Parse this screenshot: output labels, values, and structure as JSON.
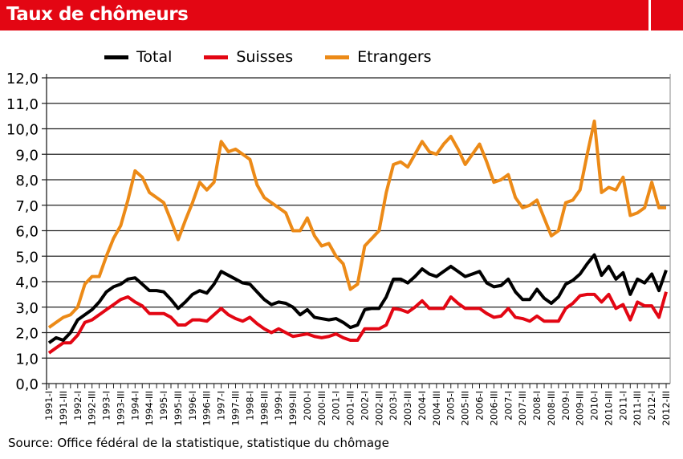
{
  "title": "Taux de chômeurs",
  "source": "Source: Office fédéral de la statistique, statistique du chômage",
  "colors": {
    "header": "#e30613",
    "total": "#000000",
    "suisses": "#e30613",
    "etrangers": "#ec8a17"
  },
  "chart_data": {
    "type": "line",
    "title": "Taux de chômeurs",
    "xlabel": "",
    "ylabel": "",
    "ylim": [
      0,
      12
    ],
    "yticks": [
      "0,0",
      "1,0",
      "2,0",
      "3,0",
      "4,0",
      "5,0",
      "6,0",
      "7,0",
      "8,0",
      "9,0",
      "10,0",
      "11,0",
      "12,0"
    ],
    "grid": "horizontal",
    "legend": "top",
    "xticklabels": [
      "1991-I",
      "1991-III",
      "1992-I",
      "1992-III",
      "1993-I",
      "1993-III",
      "1994-I",
      "1994-III",
      "1995-I",
      "1995-III",
      "1996-I",
      "1996-III",
      "1997-I",
      "1997-III",
      "1998-I",
      "1998-III",
      "1999-I",
      "1999-III",
      "2000-I",
      "2000-III",
      "2001-I",
      "2001-III",
      "2002-I",
      "2002-III",
      "2003-I",
      "2003-III",
      "2004-I",
      "2004-III",
      "2005-I",
      "2005-III",
      "2006-I",
      "2006-III",
      "2007-I",
      "2007-III",
      "2008-I",
      "2008-III",
      "2009-I",
      "2009-III",
      "2010-I",
      "2010-III",
      "2011-I",
      "2011-III",
      "2012-I",
      "2012-III"
    ],
    "x": [
      "1991-I",
      "1991-II",
      "1991-III",
      "1991-IV",
      "1992-I",
      "1992-II",
      "1992-III",
      "1992-IV",
      "1993-I",
      "1993-II",
      "1993-III",
      "1993-IV",
      "1994-I",
      "1994-II",
      "1994-III",
      "1994-IV",
      "1995-I",
      "1995-II",
      "1995-III",
      "1995-IV",
      "1996-I",
      "1996-II",
      "1996-III",
      "1996-IV",
      "1997-I",
      "1997-II",
      "1997-III",
      "1997-IV",
      "1998-I",
      "1998-II",
      "1998-III",
      "1998-IV",
      "1999-I",
      "1999-II",
      "1999-III",
      "1999-IV",
      "2000-I",
      "2000-II",
      "2000-III",
      "2000-IV",
      "2001-I",
      "2001-II",
      "2001-III",
      "2001-IV",
      "2002-I",
      "2002-II",
      "2002-III",
      "2002-IV",
      "2003-I",
      "2003-II",
      "2003-III",
      "2003-IV",
      "2004-I",
      "2004-II",
      "2004-III",
      "2004-IV",
      "2005-I",
      "2005-II",
      "2005-III",
      "2005-IV",
      "2006-I",
      "2006-II",
      "2006-III",
      "2006-IV",
      "2007-I",
      "2007-II",
      "2007-III",
      "2007-IV",
      "2008-I",
      "2008-II",
      "2008-III",
      "2008-IV",
      "2009-I",
      "2009-II",
      "2009-III",
      "2009-IV",
      "2010-I",
      "2010-II",
      "2010-III",
      "2010-IV",
      "2011-I",
      "2011-II",
      "2011-III",
      "2011-IV",
      "2012-I",
      "2012-II",
      "2012-III"
    ],
    "series": [
      {
        "name": "Total",
        "color": "#000000",
        "values": [
          1.6,
          1.8,
          1.7,
          2.0,
          2.5,
          2.7,
          2.9,
          3.2,
          3.6,
          3.8,
          3.9,
          4.1,
          4.15,
          3.9,
          3.65,
          3.65,
          3.6,
          3.3,
          2.95,
          3.2,
          3.5,
          3.65,
          3.55,
          3.9,
          4.4,
          4.25,
          4.1,
          3.95,
          3.9,
          3.6,
          3.3,
          3.1,
          3.2,
          3.15,
          3.0,
          2.7,
          2.9,
          2.6,
          2.55,
          2.5,
          2.55,
          2.4,
          2.2,
          2.3,
          2.9,
          2.95,
          2.95,
          3.4,
          4.1,
          4.1,
          3.95,
          4.2,
          4.5,
          4.3,
          4.2,
          4.4,
          4.6,
          4.4,
          4.2,
          4.3,
          4.4,
          3.95,
          3.8,
          3.85,
          4.1,
          3.6,
          3.3,
          3.3,
          3.7,
          3.35,
          3.15,
          3.4,
          3.9,
          4.05,
          4.3,
          4.7,
          5.05,
          4.25,
          4.6,
          4.1,
          4.35,
          3.5,
          4.1,
          3.95,
          4.3,
          3.65,
          4.45
        ]
      },
      {
        "name": "Suisses",
        "color": "#e30613",
        "values": [
          1.2,
          1.4,
          1.6,
          1.6,
          1.9,
          2.4,
          2.5,
          2.7,
          2.9,
          3.1,
          3.3,
          3.4,
          3.2,
          3.05,
          2.75,
          2.75,
          2.75,
          2.6,
          2.3,
          2.3,
          2.5,
          2.5,
          2.45,
          2.7,
          2.95,
          2.7,
          2.55,
          2.45,
          2.6,
          2.35,
          2.15,
          2.0,
          2.15,
          2.0,
          1.85,
          1.9,
          1.95,
          1.85,
          1.8,
          1.85,
          1.95,
          1.8,
          1.7,
          1.7,
          2.15,
          2.15,
          2.15,
          2.3,
          2.95,
          2.9,
          2.8,
          3.0,
          3.25,
          2.95,
          2.95,
          2.95,
          3.4,
          3.15,
          2.95,
          2.95,
          2.95,
          2.75,
          2.6,
          2.65,
          2.95,
          2.6,
          2.55,
          2.45,
          2.65,
          2.45,
          2.45,
          2.45,
          2.95,
          3.15,
          3.45,
          3.5,
          3.5,
          3.2,
          3.5,
          2.95,
          3.1,
          2.5,
          3.2,
          3.05,
          3.05,
          2.6,
          3.6
        ]
      },
      {
        "name": "Etrangers",
        "color": "#ec8a17",
        "values": [
          2.2,
          2.4,
          2.6,
          2.7,
          3.0,
          3.9,
          4.2,
          4.2,
          5.0,
          5.7,
          6.2,
          7.2,
          8.35,
          8.1,
          7.5,
          7.3,
          7.1,
          6.4,
          5.65,
          6.4,
          7.1,
          7.9,
          7.6,
          7.9,
          9.5,
          9.1,
          9.2,
          9.0,
          8.8,
          7.8,
          7.3,
          7.1,
          6.9,
          6.7,
          6.0,
          6.0,
          6.5,
          5.8,
          5.4,
          5.5,
          5.0,
          4.7,
          3.7,
          3.9,
          5.4,
          5.7,
          6.0,
          7.5,
          8.6,
          8.7,
          8.5,
          9.0,
          9.5,
          9.1,
          9.0,
          9.4,
          9.7,
          9.2,
          8.6,
          9.0,
          9.4,
          8.7,
          7.9,
          8.0,
          8.2,
          7.3,
          6.9,
          7.0,
          7.2,
          6.5,
          5.8,
          6.0,
          7.1,
          7.2,
          7.6,
          9.0,
          10.3,
          7.5,
          7.7,
          7.6,
          8.1,
          6.6,
          6.7,
          6.9,
          7.9,
          6.9,
          6.9
        ]
      }
    ]
  }
}
